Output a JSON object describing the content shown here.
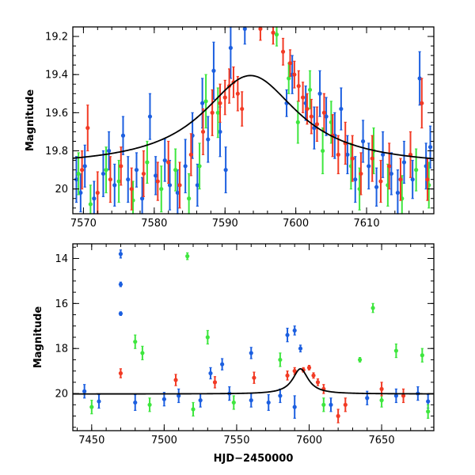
{
  "colors": {
    "blue": "#1c5fe0",
    "green": "#3ee63e",
    "red": "#f23a24",
    "model": "#000000"
  },
  "chart_data": [
    {
      "id": "zoom",
      "type": "scatter",
      "title": "",
      "xlabel": "",
      "ylabel": "Magnitude",
      "xlim": [
        7568.5,
        7619.5
      ],
      "ylim": [
        20.13,
        19.15
      ],
      "y_inverted": true,
      "xticks": [
        7570,
        7580,
        7590,
        7600,
        7610
      ],
      "yticks": [
        19.2,
        19.4,
        19.6,
        19.8,
        20
      ],
      "ytick_labels": [
        "19.2",
        "19.4",
        "19.6",
        "19.8",
        "20"
      ],
      "model_curve": {
        "baseline": 19.885,
        "peak": 19.405,
        "t0": 7593.6,
        "tE": 8.2
      },
      "series": [
        {
          "color_key": "blue",
          "points": [
            [
              7569.0,
              19.95,
              0.12
            ],
            [
              7569.6,
              20.02,
              0.1
            ],
            [
              7570.2,
              19.88,
              0.11
            ],
            [
              7571.5,
              20.05,
              0.09
            ],
            [
              7572.8,
              19.92,
              0.12
            ],
            [
              7573.6,
              19.8,
              0.1
            ],
            [
              7574.4,
              19.98,
              0.11
            ],
            [
              7575.6,
              19.72,
              0.1
            ],
            [
              7576.3,
              19.95,
              0.12
            ],
            [
              7577.5,
              19.9,
              0.09
            ],
            [
              7578.3,
              20.05,
              0.11
            ],
            [
              7579.4,
              19.62,
              0.12
            ],
            [
              7580.2,
              19.93,
              0.1
            ],
            [
              7581.5,
              19.85,
              0.11
            ],
            [
              7582.2,
              19.98,
              0.13
            ],
            [
              7583.3,
              20.02,
              0.12
            ],
            [
              7584.4,
              19.88,
              0.14
            ],
            [
              7585.4,
              19.72,
              0.12
            ],
            [
              7586.1,
              19.98,
              0.11
            ],
            [
              7586.8,
              19.55,
              0.13
            ],
            [
              7587.6,
              19.74,
              0.12
            ],
            [
              7588.4,
              19.38,
              0.15
            ],
            [
              7589.3,
              19.7,
              0.13
            ],
            [
              7590.1,
              19.9,
              0.12
            ],
            [
              7590.8,
              19.26,
              0.16
            ],
            [
              7592.8,
              19.16,
              0.08
            ],
            [
              7598.7,
              19.55,
              0.07
            ],
            [
              7599.5,
              19.4,
              0.1
            ],
            [
              7601.4,
              19.55,
              0.09
            ],
            [
              7602.6,
              19.68,
              0.11
            ],
            [
              7603.4,
              19.5,
              0.12
            ],
            [
              7604.3,
              19.62,
              0.1
            ],
            [
              7605.5,
              19.72,
              0.12
            ],
            [
              7606.4,
              19.58,
              0.11
            ],
            [
              7607.3,
              19.82,
              0.1
            ],
            [
              7608.4,
              19.95,
              0.12
            ],
            [
              7609.5,
              19.75,
              0.11
            ],
            [
              7610.3,
              19.88,
              0.12
            ],
            [
              7611.4,
              19.99,
              0.1
            ],
            [
              7612.3,
              19.82,
              0.12
            ],
            [
              7613.5,
              19.92,
              0.11
            ],
            [
              7614.4,
              20.02,
              0.12
            ],
            [
              7615.3,
              19.86,
              0.11
            ],
            [
              7616.5,
              19.95,
              0.1
            ],
            [
              7617.5,
              19.42,
              0.14
            ],
            [
              7618.4,
              19.88,
              0.12
            ],
            [
              7619.0,
              19.78,
              0.11
            ]
          ]
        },
        {
          "color_key": "green",
          "points": [
            [
              7569.3,
              19.92,
              0.11
            ],
            [
              7571.0,
              20.08,
              0.1
            ],
            [
              7573.2,
              19.9,
              0.12
            ],
            [
              7575.0,
              19.96,
              0.11
            ],
            [
              7577.0,
              20.06,
              0.1
            ],
            [
              7579.0,
              19.86,
              0.11
            ],
            [
              7581.0,
              20.0,
              0.12
            ],
            [
              7583.0,
              19.9,
              0.11
            ],
            [
              7584.9,
              20.05,
              0.13
            ],
            [
              7586.4,
              19.88,
              0.12
            ],
            [
              7587.3,
              19.54,
              0.14
            ],
            [
              7589.0,
              19.6,
              0.13
            ],
            [
              7597.3,
              19.19,
              0.06
            ],
            [
              7599.0,
              19.42,
              0.08
            ],
            [
              7600.3,
              19.65,
              0.11
            ],
            [
              7602.0,
              19.48,
              0.1
            ],
            [
              7603.8,
              19.8,
              0.12
            ],
            [
              7605.0,
              19.65,
              0.11
            ],
            [
              7607.8,
              19.88,
              0.12
            ],
            [
              7609.0,
              20.0,
              0.11
            ],
            [
              7611.0,
              19.8,
              0.12
            ],
            [
              7613.0,
              19.98,
              0.11
            ],
            [
              7615.0,
              20.05,
              0.12
            ],
            [
              7617.0,
              19.9,
              0.11
            ],
            [
              7618.8,
              19.98,
              0.12
            ]
          ]
        },
        {
          "color_key": "red",
          "points": [
            [
              7569.8,
              19.9,
              0.1
            ],
            [
              7570.6,
              19.68,
              0.12
            ],
            [
              7572.0,
              20.02,
              0.11
            ],
            [
              7573.8,
              19.95,
              0.12
            ],
            [
              7575.3,
              19.88,
              0.1
            ],
            [
              7576.8,
              20.0,
              0.11
            ],
            [
              7578.5,
              19.92,
              0.12
            ],
            [
              7580.5,
              19.96,
              0.1
            ],
            [
              7582.0,
              19.86,
              0.11
            ],
            [
              7583.6,
              19.98,
              0.12
            ],
            [
              7585.2,
              19.82,
              0.11
            ],
            [
              7586.9,
              19.7,
              0.12
            ],
            [
              7588.2,
              19.6,
              0.12
            ],
            [
              7589.3,
              19.55,
              0.1
            ],
            [
              7590.0,
              19.52,
              0.09
            ],
            [
              7590.6,
              19.46,
              0.09
            ],
            [
              7591.2,
              19.44,
              0.08
            ],
            [
              7591.8,
              19.5,
              0.09
            ],
            [
              7592.4,
              19.58,
              0.09
            ],
            [
              7595.0,
              19.16,
              0.06
            ],
            [
              7596.8,
              19.18,
              0.06
            ],
            [
              7598.2,
              19.28,
              0.07
            ],
            [
              7599.2,
              19.34,
              0.07
            ],
            [
              7599.8,
              19.4,
              0.07
            ],
            [
              7600.4,
              19.46,
              0.08
            ],
            [
              7601.0,
              19.52,
              0.08
            ],
            [
              7601.6,
              19.58,
              0.08
            ],
            [
              7602.2,
              19.62,
              0.09
            ],
            [
              7603.0,
              19.66,
              0.09
            ],
            [
              7604.0,
              19.6,
              0.1
            ],
            [
              7605.2,
              19.72,
              0.11
            ],
            [
              7606.0,
              19.82,
              0.1
            ],
            [
              7607.0,
              19.76,
              0.11
            ],
            [
              7608.0,
              19.84,
              0.12
            ],
            [
              7609.2,
              19.92,
              0.11
            ],
            [
              7610.8,
              19.84,
              0.12
            ],
            [
              7612.0,
              19.96,
              0.11
            ],
            [
              7613.2,
              19.88,
              0.12
            ],
            [
              7614.8,
              19.95,
              0.11
            ],
            [
              7616.2,
              19.82,
              0.12
            ],
            [
              7617.8,
              19.55,
              0.13
            ],
            [
              7618.6,
              19.95,
              0.11
            ]
          ]
        }
      ]
    },
    {
      "id": "full",
      "type": "scatter",
      "title": "",
      "xlabel": "HJD−2450000",
      "ylabel": "Magnitude",
      "xlim": [
        7437,
        7686
      ],
      "ylim": [
        21.65,
        13.35
      ],
      "y_inverted": true,
      "xticks": [
        7450,
        7500,
        7550,
        7600,
        7650
      ],
      "yticks": [
        14,
        16,
        18,
        20
      ],
      "ytick_labels": [
        "14",
        "16",
        "18",
        "20"
      ],
      "model_curve": {
        "baseline": 20.02,
        "peak": 18.9,
        "t0": 7594,
        "tE": 6.5
      },
      "series": [
        {
          "color_key": "blue",
          "points": [
            [
              7470,
              13.8,
              0.18
            ],
            [
              7470,
              15.15,
              0.1
            ],
            [
              7470,
              16.45,
              0.08
            ],
            [
              7532,
              19.1,
              0.25
            ],
            [
              7540,
              18.7,
              0.25
            ],
            [
              7560,
              18.2,
              0.25
            ],
            [
              7585,
              17.4,
              0.3
            ],
            [
              7590,
              17.2,
              0.2
            ],
            [
              7594,
              18.0,
              0.15
            ],
            [
              7445,
              19.9,
              0.3
            ],
            [
              7455,
              20.35,
              0.3
            ],
            [
              7480,
              20.4,
              0.35
            ],
            [
              7500,
              20.25,
              0.3
            ],
            [
              7510,
              20.1,
              0.3
            ],
            [
              7525,
              20.3,
              0.3
            ],
            [
              7545,
              20.0,
              0.3
            ],
            [
              7560,
              20.3,
              0.3
            ],
            [
              7572,
              20.4,
              0.35
            ],
            [
              7580,
              20.1,
              0.3
            ],
            [
              7590,
              20.6,
              0.5
            ],
            [
              7615,
              20.5,
              0.3
            ],
            [
              7640,
              20.2,
              0.3
            ],
            [
              7660,
              20.1,
              0.3
            ],
            [
              7675,
              20.0,
              0.3
            ],
            [
              7682,
              20.35,
              0.3
            ]
          ]
        },
        {
          "color_key": "green",
          "points": [
            [
              7480,
              17.7,
              0.3
            ],
            [
              7485,
              18.2,
              0.3
            ],
            [
              7516,
              13.9,
              0.15
            ],
            [
              7530,
              17.5,
              0.3
            ],
            [
              7580,
              18.5,
              0.3
            ],
            [
              7635,
              18.5,
              0.1
            ],
            [
              7644,
              16.2,
              0.2
            ],
            [
              7660,
              18.1,
              0.3
            ],
            [
              7678,
              18.3,
              0.3
            ],
            [
              7682,
              20.8,
              0.3
            ],
            [
              7450,
              20.6,
              0.3
            ],
            [
              7490,
              20.5,
              0.3
            ],
            [
              7520,
              20.7,
              0.3
            ],
            [
              7548,
              20.4,
              0.3
            ],
            [
              7610,
              20.5,
              0.3
            ],
            [
              7650,
              20.3,
              0.3
            ]
          ]
        },
        {
          "color_key": "red",
          "points": [
            [
              7470,
              19.1,
              0.2
            ],
            [
              7508,
              19.4,
              0.25
            ],
            [
              7535,
              19.5,
              0.25
            ],
            [
              7562,
              19.3,
              0.25
            ],
            [
              7585,
              19.2,
              0.2
            ],
            [
              7590,
              19.0,
              0.15
            ],
            [
              7596,
              18.95,
              0.1
            ],
            [
              7600,
              18.85,
              0.1
            ],
            [
              7603,
              19.2,
              0.12
            ],
            [
              7606,
              19.5,
              0.15
            ],
            [
              7610,
              19.8,
              0.2
            ],
            [
              7620,
              21.0,
              0.3
            ],
            [
              7625,
              20.5,
              0.3
            ],
            [
              7650,
              19.8,
              0.3
            ],
            [
              7665,
              20.1,
              0.3
            ]
          ]
        }
      ]
    }
  ]
}
